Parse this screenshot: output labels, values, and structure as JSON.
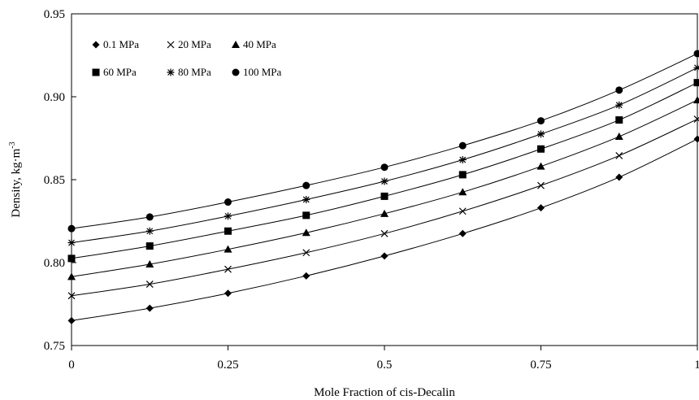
{
  "chart_data": {
    "type": "line",
    "xlabel": "Mole Fraction of cis-Decalin",
    "ylabel": "Density,  kg·m",
    "ylabel_sup": "-3",
    "xlim": [
      0,
      1
    ],
    "ylim": [
      0.75,
      0.95
    ],
    "x_ticks": [
      0,
      0.25,
      0.5,
      0.75,
      1
    ],
    "x_tick_labels": [
      "0",
      "0.25",
      "0.5",
      "0.75",
      "1"
    ],
    "y_ticks": [
      0.75,
      0.8,
      0.85,
      0.9,
      0.95
    ],
    "y_tick_labels": [
      "0.75",
      "0.80",
      "0.85",
      "0.90",
      "0.95"
    ],
    "grid": false,
    "legend_placement": "top-left",
    "x": [
      0,
      0.125,
      0.25,
      0.375,
      0.5,
      0.625,
      0.75,
      0.875,
      1
    ],
    "series": [
      {
        "name": "0.1 MPa",
        "marker": "diamond",
        "values": [
          0.765,
          0.7725,
          0.7815,
          0.792,
          0.804,
          0.8175,
          0.833,
          0.8515,
          0.8745
        ]
      },
      {
        "name": "20 MPa",
        "marker": "x",
        "values": [
          0.78,
          0.787,
          0.796,
          0.806,
          0.8175,
          0.831,
          0.8465,
          0.8645,
          0.8865
        ]
      },
      {
        "name": "40 MPa",
        "marker": "triangle",
        "values": [
          0.7915,
          0.799,
          0.808,
          0.818,
          0.8295,
          0.8425,
          0.858,
          0.876,
          0.898
        ]
      },
      {
        "name": "60 MPa",
        "marker": "square",
        "values": [
          0.8025,
          0.81,
          0.819,
          0.8285,
          0.84,
          0.853,
          0.8685,
          0.886,
          0.9085
        ]
      },
      {
        "name": "80 MPa",
        "marker": "star",
        "values": [
          0.812,
          0.819,
          0.828,
          0.838,
          0.849,
          0.862,
          0.8775,
          0.895,
          0.9175
        ]
      },
      {
        "name": "100 MPa",
        "marker": "circle",
        "values": [
          0.8205,
          0.8275,
          0.8365,
          0.8465,
          0.8575,
          0.8705,
          0.8855,
          0.904,
          0.926
        ]
      }
    ],
    "line_color": "#000000",
    "marker_color": "#000000"
  }
}
